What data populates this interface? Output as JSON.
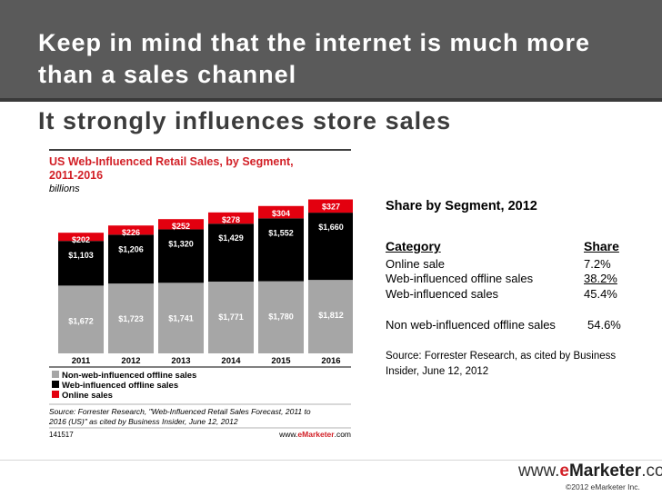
{
  "slide": {
    "title": "Keep in mind that the internet is much more than a sales channel",
    "subtitle": "It strongly influences store sales"
  },
  "chart_data": {
    "type": "bar",
    "stacked": true,
    "title": "US Web-Influenced Retail Sales, by Segment, 2011-2016",
    "title_line1": "US Web-Influenced Retail Sales, by Segment,",
    "title_line2": "2011-2016",
    "units": "billions",
    "categories": [
      "2011",
      "2012",
      "2013",
      "2014",
      "2015",
      "2016"
    ],
    "series": [
      {
        "name": "Non-web-influenced offline sales",
        "color": "#a6a6a6",
        "values": [
          1672,
          1723,
          1741,
          1771,
          1780,
          1812
        ],
        "labels": [
          "$1,672",
          "$1,723",
          "$1,741",
          "$1,771",
          "$1,780",
          "$1,812"
        ]
      },
      {
        "name": "Web-influenced offline sales",
        "color": "#000000",
        "values": [
          1103,
          1206,
          1320,
          1429,
          1552,
          1660
        ],
        "labels": [
          "$1,103",
          "$1,206",
          "$1,320",
          "$1,429",
          "$1,552",
          "$1,660"
        ]
      },
      {
        "name": "Online sales",
        "color": "#e3000f",
        "values": [
          202,
          226,
          252,
          278,
          304,
          327
        ],
        "labels": [
          "$202",
          "$226",
          "$252",
          "$278",
          "$304",
          "$327"
        ]
      }
    ],
    "ylim": [
      0,
      3900
    ],
    "grid": false,
    "legend_position": "bottom-left",
    "source_line1": "Source: Forrester Research, \"Web-Influenced Retail Sales Forecast, 2011 to",
    "source_line2": "2016 (US)\" as cited by Business Insider, June 12, 2012",
    "chart_id": "141517",
    "brand_prefix": "www.",
    "brand_name": "eMarketer",
    "brand_suffix": ".com"
  },
  "share_table": {
    "title": "Share by Segment, 2012",
    "header_category": "Category",
    "header_share": "Share",
    "rows": [
      {
        "category": "Online sale",
        "share": "7.2%"
      },
      {
        "category": "Web-influenced offline sales",
        "share": "38.2%"
      },
      {
        "category": "Web-influenced sales",
        "share": "45.4%"
      },
      {
        "category": "Non web-influenced offline sales",
        "share": "54.6%"
      }
    ],
    "source": "Source: Forrester Research, as cited by Business Insider, June 12, 2012"
  },
  "footer": {
    "brand_www": "www.",
    "brand_e": "e",
    "brand_marketer": "Marketer",
    "brand_com": ".com",
    "copyright": "©2012 eMarketer Inc."
  }
}
